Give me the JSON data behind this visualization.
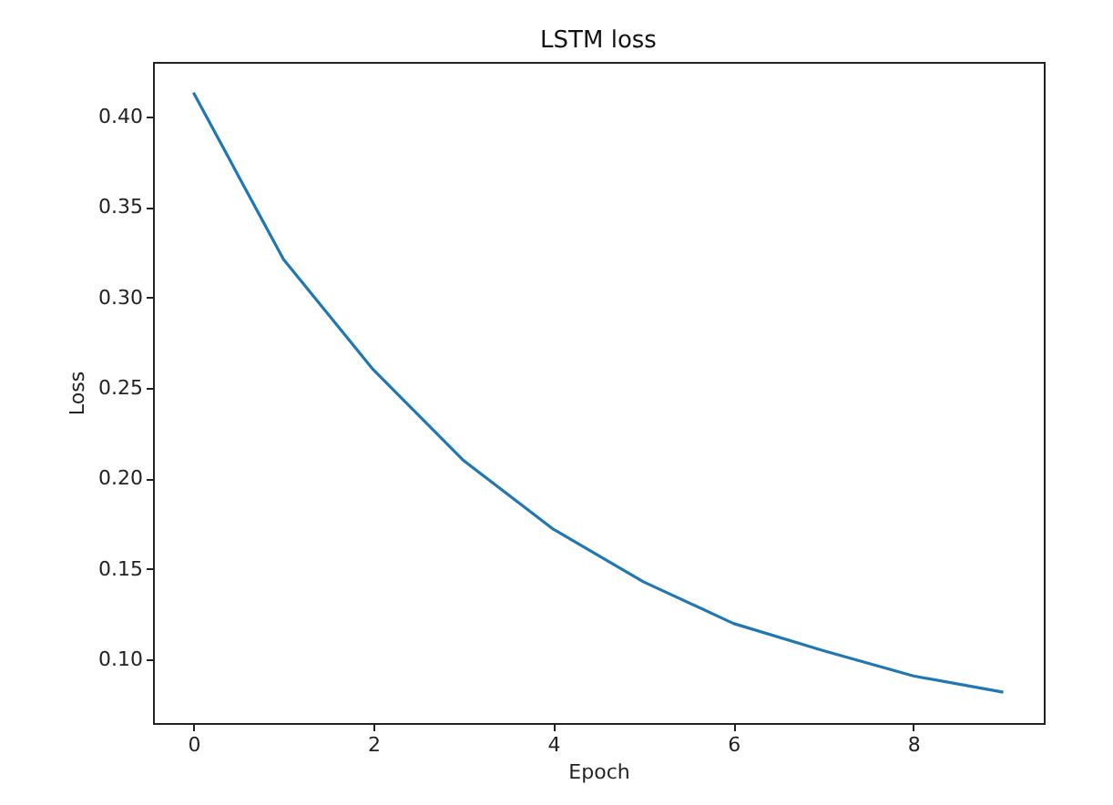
{
  "chart_data": {
    "type": "line",
    "title": "LSTM loss",
    "xlabel": "Epoch",
    "ylabel": "Loss",
    "x": [
      0,
      1,
      2,
      3,
      4,
      5,
      6,
      7,
      8,
      9
    ],
    "series": [
      {
        "color": "#1f77b4",
        "values": [
          0.413,
          0.321,
          0.26,
          0.21,
          0.172,
          0.143,
          0.12,
          0.105,
          0.091,
          0.082
        ]
      }
    ],
    "xlim": [
      -0.45,
      9.45
    ],
    "ylim": [
      0.065,
      0.43
    ],
    "xticks": [
      0,
      2,
      4,
      6,
      8
    ],
    "yticks": [
      {
        "value": 0.1,
        "label": "0.10"
      },
      {
        "value": 0.15,
        "label": "0.15"
      },
      {
        "value": 0.2,
        "label": "0.20"
      },
      {
        "value": 0.25,
        "label": "0.25"
      },
      {
        "value": 0.3,
        "label": "0.30"
      },
      {
        "value": 0.35,
        "label": "0.35"
      },
      {
        "value": 0.4,
        "label": "0.40"
      }
    ],
    "marker": "none",
    "line_style": "solid"
  }
}
